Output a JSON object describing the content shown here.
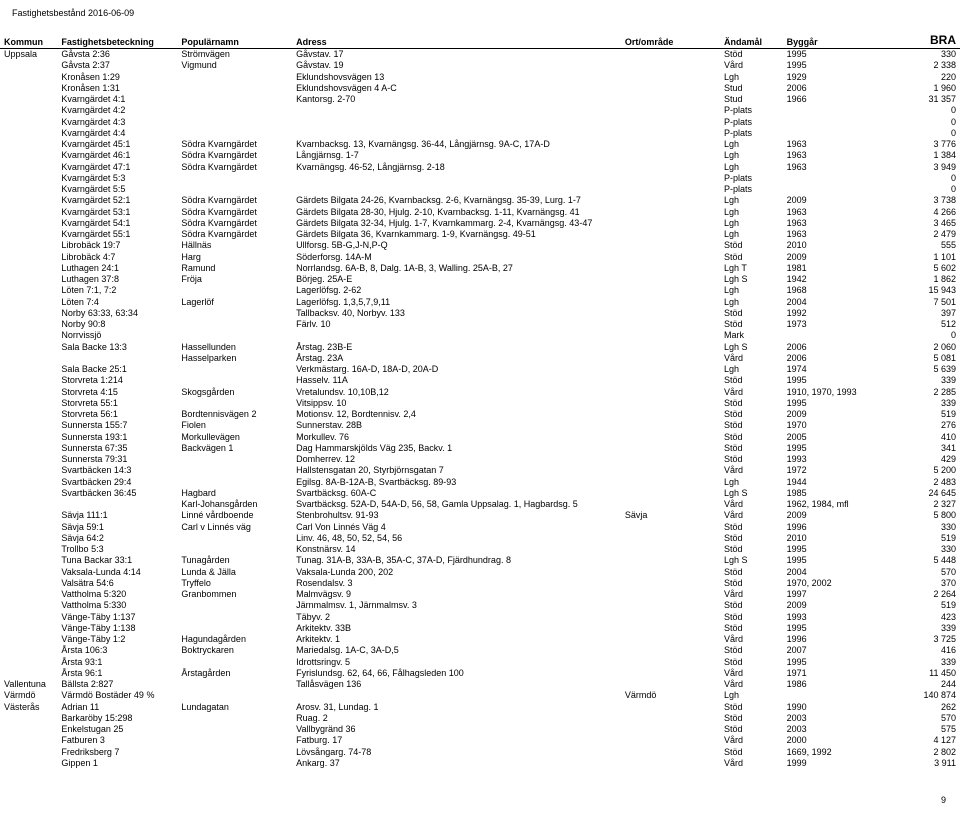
{
  "report_date": "Fastighetsbestånd 2016-06-09",
  "page_number": "9",
  "columns": {
    "kommun": "Kommun",
    "fast": "Fastighetsbeteckning",
    "pop": "Populärnamn",
    "adr": "Adress",
    "ort": "Ort/område",
    "and": "Ändamål",
    "bygg": "Byggår",
    "bra": "BRA"
  },
  "rows": [
    {
      "kommun": "Uppsala",
      "fast": "Gåvsta 2:36",
      "pop": "Strömvägen",
      "adr": "Gåvstav. 17",
      "ort": "",
      "and": "Stöd",
      "bygg": "1995",
      "bra": "330"
    },
    {
      "kommun": "",
      "fast": "Gåvsta 2:37",
      "pop": "Vigmund",
      "adr": "Gåvstav. 19",
      "ort": "",
      "and": "Vård",
      "bygg": "1995",
      "bra": "2 338"
    },
    {
      "kommun": "",
      "fast": "Kronåsen 1:29",
      "pop": "",
      "adr": "Eklundshovsvägen 13",
      "ort": "",
      "and": "Lgh",
      "bygg": "1929",
      "bra": "220"
    },
    {
      "kommun": "",
      "fast": "Kronåsen 1:31",
      "pop": "",
      "adr": "Eklundshovsvägen 4 A-C",
      "ort": "",
      "and": "Stud",
      "bygg": "2006",
      "bra": "1 960"
    },
    {
      "kommun": "",
      "fast": "Kvarngärdet 4:1",
      "pop": "",
      "adr": "Kantorsg. 2-70",
      "ort": "",
      "and": "Stud",
      "bygg": "1966",
      "bra": "31 357"
    },
    {
      "kommun": "",
      "fast": "Kvarngärdet 4:2",
      "pop": "",
      "adr": "",
      "ort": "",
      "and": "P-plats",
      "bygg": "",
      "bra": "0"
    },
    {
      "kommun": "",
      "fast": "Kvarngärdet 4:3",
      "pop": "",
      "adr": "",
      "ort": "",
      "and": "P-plats",
      "bygg": "",
      "bra": "0"
    },
    {
      "kommun": "",
      "fast": "Kvarngärdet 4:4",
      "pop": "",
      "adr": "",
      "ort": "",
      "and": "P-plats",
      "bygg": "",
      "bra": "0"
    },
    {
      "kommun": "",
      "fast": "Kvarngärdet 45:1",
      "pop": "Södra Kvarngärdet",
      "adr": "Kvarnbacksg. 13, Kvarnängsg. 36-44, Långjärnsg. 9A-C, 17A-D",
      "ort": "",
      "and": "Lgh",
      "bygg": "1963",
      "bra": "3 776"
    },
    {
      "kommun": "",
      "fast": "Kvarngärdet 46:1",
      "pop": "Södra Kvarngärdet",
      "adr": "Långjärnsg. 1-7",
      "ort": "",
      "and": "Lgh",
      "bygg": "1963",
      "bra": "1 384"
    },
    {
      "kommun": "",
      "fast": "Kvarngärdet 47:1",
      "pop": "Södra Kvarngärdet",
      "adr": "Kvarnängsg. 46-52, Långjärnsg. 2-18",
      "ort": "",
      "and": "Lgh",
      "bygg": "1963",
      "bra": "3 949"
    },
    {
      "kommun": "",
      "fast": "Kvarngärdet 5:3",
      "pop": "",
      "adr": "",
      "ort": "",
      "and": "P-plats",
      "bygg": "",
      "bra": "0"
    },
    {
      "kommun": "",
      "fast": "Kvarngärdet 5:5",
      "pop": "",
      "adr": "",
      "ort": "",
      "and": "P-plats",
      "bygg": "",
      "bra": "0"
    },
    {
      "kommun": "",
      "fast": "Kvarngärdet 52:1",
      "pop": "Södra Kvarngärdet",
      "adr": "Gärdets Bilgata 24-26, Kvarnbacksg. 2-6, Kvarnängsg. 35-39, Lurg. 1-7",
      "ort": "",
      "and": "Lgh",
      "bygg": "2009",
      "bra": "3 738"
    },
    {
      "kommun": "",
      "fast": "Kvarngärdet 53:1",
      "pop": "Södra Kvarngärdet",
      "adr": "Gärdets Bilgata 28-30, Hjulg. 2-10, Kvarnbacksg. 1-11, Kvarnängsg. 41",
      "ort": "",
      "and": "Lgh",
      "bygg": "1963",
      "bra": "4 266"
    },
    {
      "kommun": "",
      "fast": "Kvarngärdet 54:1",
      "pop": "Södra Kvarngärdet",
      "adr": "Gärdets Bilgata 32-34, Hjulg. 1-7, Kvarnkammarg. 2-4, Kvarnängsg. 43-47",
      "ort": "",
      "and": "Lgh",
      "bygg": "1963",
      "bra": "3 465"
    },
    {
      "kommun": "",
      "fast": "Kvarngärdet 55:1",
      "pop": "Södra Kvarngärdet",
      "adr": "Gärdets Bilgata 36, Kvarnkammarg. 1-9, Kvarnängsg. 49-51",
      "ort": "",
      "and": "Lgh",
      "bygg": "1963",
      "bra": "2 479"
    },
    {
      "kommun": "",
      "fast": "Librobäck 19:7",
      "pop": "Hällnäs",
      "adr": "Ullforsg. 5B-G,J-N,P-Q",
      "ort": "",
      "and": "Stöd",
      "bygg": "2010",
      "bra": "555"
    },
    {
      "kommun": "",
      "fast": "Librobäck 4:7",
      "pop": "Harg",
      "adr": "Söderforsg. 14A-M",
      "ort": "",
      "and": "Stöd",
      "bygg": "2009",
      "bra": "1 101"
    },
    {
      "kommun": "",
      "fast": "Luthagen 24:1",
      "pop": "Ramund",
      "adr": "Norrlandsg. 6A-B, 8, Dalg. 1A-B, 3, Walling. 25A-B, 27",
      "ort": "",
      "and": "Lgh T",
      "bygg": "1981",
      "bra": "5 602"
    },
    {
      "kommun": "",
      "fast": "Luthagen 37:8",
      "pop": "Fröja",
      "adr": "Börjeg. 25A-E",
      "ort": "",
      "and": "Lgh S",
      "bygg": "1942",
      "bra": "1 862"
    },
    {
      "kommun": "",
      "fast": "Löten 7:1, 7:2",
      "pop": "",
      "adr": "Lagerlöfsg. 2-62",
      "ort": "",
      "and": "Lgh",
      "bygg": "1968",
      "bra": "15 943"
    },
    {
      "kommun": "",
      "fast": "Löten 7:4",
      "pop": "Lagerlöf",
      "adr": "Lagerlöfsg. 1,3,5,7,9,11",
      "ort": "",
      "and": "Lgh",
      "bygg": "2004",
      "bra": "7 501"
    },
    {
      "kommun": "",
      "fast": "Norby 63:33, 63:34",
      "pop": "",
      "adr": "Tallbacksv. 40, Norbyv. 133",
      "ort": "",
      "and": "Stöd",
      "bygg": "1992",
      "bra": "397"
    },
    {
      "kommun": "",
      "fast": "Norby 90:8",
      "pop": "",
      "adr": "Färlv. 10",
      "ort": "",
      "and": "Stöd",
      "bygg": "1973",
      "bra": "512"
    },
    {
      "kommun": "",
      "fast": "Norrvissjö",
      "pop": "",
      "adr": "",
      "ort": "",
      "and": "Mark",
      "bygg": "",
      "bra": "0"
    },
    {
      "kommun": "",
      "fast": "Sala Backe 13:3",
      "pop": "Hassellunden",
      "adr": "Årstag. 23B-E",
      "ort": "",
      "and": "Lgh S",
      "bygg": "2006",
      "bra": "2 060"
    },
    {
      "kommun": "",
      "fast": "",
      "pop": "Hasselparken",
      "adr": "Årstag. 23A",
      "ort": "",
      "and": "Vård",
      "bygg": "2006",
      "bra": "5 081"
    },
    {
      "kommun": "",
      "fast": "Sala Backe 25:1",
      "pop": "",
      "adr": "Verkmästarg. 16A-D, 18A-D, 20A-D",
      "ort": "",
      "and": "Lgh",
      "bygg": "1974",
      "bra": "5 639"
    },
    {
      "kommun": "",
      "fast": "Storvreta 1:214",
      "pop": "",
      "adr": "Hasselv. 11A",
      "ort": "",
      "and": "Stöd",
      "bygg": "1995",
      "bra": "339"
    },
    {
      "kommun": "",
      "fast": "Storvreta 4:15",
      "pop": "Skogsgården",
      "adr": "Vretalundsv. 10,10B,12",
      "ort": "",
      "and": "Vård",
      "bygg": "1910, 1970, 1993",
      "bra": "2 285"
    },
    {
      "kommun": "",
      "fast": "Storvreta 55:1",
      "pop": "",
      "adr": "Vitsippsv. 10",
      "ort": "",
      "and": "Stöd",
      "bygg": "1995",
      "bra": "339"
    },
    {
      "kommun": "",
      "fast": "Storvreta 56:1",
      "pop": "Bordtennisvägen 2",
      "adr": "Motionsv. 12, Bordtennisv. 2,4",
      "ort": "",
      "and": "Stöd",
      "bygg": "2009",
      "bra": "519"
    },
    {
      "kommun": "",
      "fast": "Sunnersta 155:7",
      "pop": "Fiolen",
      "adr": "Sunnerstav. 28B",
      "ort": "",
      "and": "Stöd",
      "bygg": "1970",
      "bra": "276"
    },
    {
      "kommun": "",
      "fast": "Sunnersta 193:1",
      "pop": "Morkullevägen",
      "adr": "Morkullev. 76",
      "ort": "",
      "and": "Stöd",
      "bygg": "2005",
      "bra": "410"
    },
    {
      "kommun": "",
      "fast": "Sunnersta 67:35",
      "pop": "Backvägen 1",
      "adr": "Dag Hammarskjölds Väg 235, Backv. 1",
      "ort": "",
      "and": "Stöd",
      "bygg": "1995",
      "bra": "341"
    },
    {
      "kommun": "",
      "fast": "Sunnersta 79:31",
      "pop": "",
      "adr": "Domherrev. 12",
      "ort": "",
      "and": "Stöd",
      "bygg": "1993",
      "bra": "429"
    },
    {
      "kommun": "",
      "fast": "Svartbäcken 14:3",
      "pop": "",
      "adr": "Hallstensgatan 20, Styrbjörnsgatan 7",
      "ort": "",
      "and": "Vård",
      "bygg": "1972",
      "bra": "5 200"
    },
    {
      "kommun": "",
      "fast": "Svartbäcken 29:4",
      "pop": "",
      "adr": "Egilsg. 8A-B-12A-B, Svartbäcksg. 89-93",
      "ort": "",
      "and": "Lgh",
      "bygg": "1944",
      "bra": "2 483"
    },
    {
      "kommun": "",
      "fast": "Svartbäcken 36:45",
      "pop": "Hagbard",
      "adr": "Svartbäcksg. 60A-C",
      "ort": "",
      "and": "Lgh S",
      "bygg": "1985",
      "bra": "24 645"
    },
    {
      "kommun": "",
      "fast": "",
      "pop": "Karl-Johansgården",
      "adr": "Svartbäcksg. 52A-D, 54A-D, 56, 58, Gamla Uppsalag. 1, Hagbardsg. 5",
      "ort": "",
      "and": "Vård",
      "bygg": "1962, 1984, mfl",
      "bra": "2 327"
    },
    {
      "kommun": "",
      "fast": "Sävja 111:1",
      "pop": "Linné vårdboende",
      "adr": "Stenbrohultsv. 91-93",
      "ort": "Sävja",
      "and": "Vård",
      "bygg": "2009",
      "bra": "5 800"
    },
    {
      "kommun": "",
      "fast": "Sävja 59:1",
      "pop": "Carl v Linnés väg",
      "adr": "Carl Von Linnés Väg 4",
      "ort": "",
      "and": "Stöd",
      "bygg": "1996",
      "bra": "330"
    },
    {
      "kommun": "",
      "fast": "Sävja 64:2",
      "pop": "",
      "adr": "Linv. 46, 48, 50, 52, 54, 56",
      "ort": "",
      "and": "Stöd",
      "bygg": "2010",
      "bra": "519"
    },
    {
      "kommun": "",
      "fast": "Trollbo 5:3",
      "pop": "",
      "adr": "Konstnärsv. 14",
      "ort": "",
      "and": "Stöd",
      "bygg": "1995",
      "bra": "330"
    },
    {
      "kommun": "",
      "fast": "Tuna Backar 33:1",
      "pop": "Tunagården",
      "adr": "Tunag. 31A-B, 33A-B, 35A-C, 37A-D, Fjärdhundrag. 8",
      "ort": "",
      "and": "Lgh S",
      "bygg": "1995",
      "bra": "5 448"
    },
    {
      "kommun": "",
      "fast": "Vaksala-Lunda 4:14",
      "pop": "Lunda & Jälla",
      "adr": "Vaksala-Lunda 200, 202",
      "ort": "",
      "and": "Stöd",
      "bygg": "2004",
      "bra": "570"
    },
    {
      "kommun": "",
      "fast": "Valsätra 54:6",
      "pop": "Tryffelo",
      "adr": "Rosendalsv. 3",
      "ort": "",
      "and": "Stöd",
      "bygg": "1970, 2002",
      "bra": "370"
    },
    {
      "kommun": "",
      "fast": "Vattholma 5:320",
      "pop": "Granbommen",
      "adr": "Malmvägsv. 9",
      "ort": "",
      "and": "Vård",
      "bygg": "1997",
      "bra": "2 264"
    },
    {
      "kommun": "",
      "fast": "Vattholma 5:330",
      "pop": "",
      "adr": "Järnmalmsv. 1, Järnmalmsv. 3",
      "ort": "",
      "and": "Stöd",
      "bygg": "2009",
      "bra": "519"
    },
    {
      "kommun": "",
      "fast": "Vänge-Täby 1:137",
      "pop": "",
      "adr": "Täbyv. 2",
      "ort": "",
      "and": "Stöd",
      "bygg": "1993",
      "bra": "423"
    },
    {
      "kommun": "",
      "fast": "Vänge-Täby 1:138",
      "pop": "",
      "adr": "Arkitektv. 33B",
      "ort": "",
      "and": "Stöd",
      "bygg": "1995",
      "bra": "339"
    },
    {
      "kommun": "",
      "fast": "Vänge-Täby 1:2",
      "pop": "Hagundagården",
      "adr": "Arkitektv. 1",
      "ort": "",
      "and": "Vård",
      "bygg": "1996",
      "bra": "3 725"
    },
    {
      "kommun": "",
      "fast": "Årsta 106:3",
      "pop": "Boktryckaren",
      "adr": "Mariedalsg. 1A-C, 3A-D,5",
      "ort": "",
      "and": "Stöd",
      "bygg": "2007",
      "bra": "416"
    },
    {
      "kommun": "",
      "fast": "Årsta 93:1",
      "pop": "",
      "adr": "Idrottsringv. 5",
      "ort": "",
      "and": "Stöd",
      "bygg": "1995",
      "bra": "339"
    },
    {
      "kommun": "",
      "fast": "Årsta 96:1",
      "pop": "Årstagården",
      "adr": "Fyrislundsg. 62, 64, 66, Fålhagsleden 100",
      "ort": "",
      "and": "Vård",
      "bygg": "1971",
      "bra": "11 450"
    },
    {
      "kommun": "Vallentuna",
      "fast": "Bällsta 2:827",
      "pop": "",
      "adr": "Tallåsvägen 136",
      "ort": "",
      "and": "Vård",
      "bygg": "1986",
      "bra": "244"
    },
    {
      "kommun": "Värmdö",
      "fast": "Värmdö Bostäder 49 %",
      "pop": "",
      "adr": "",
      "ort": "Värmdö",
      "and": "Lgh",
      "bygg": "",
      "bra": "140 874"
    },
    {
      "kommun": "Västerås",
      "fast": "Adrian 11",
      "pop": "Lundagatan",
      "adr": "Arosv. 31, Lundag. 1",
      "ort": "",
      "and": "Stöd",
      "bygg": "1990",
      "bra": "262"
    },
    {
      "kommun": "",
      "fast": "Barkaröby 15:298",
      "pop": "",
      "adr": "Ruag. 2",
      "ort": "",
      "and": "Stöd",
      "bygg": "2003",
      "bra": "570"
    },
    {
      "kommun": "",
      "fast": "Enkelstugan 25",
      "pop": "",
      "adr": "Vallbygränd 36",
      "ort": "",
      "and": "Stöd",
      "bygg": "2003",
      "bra": "575"
    },
    {
      "kommun": "",
      "fast": "Fatburen 3",
      "pop": "",
      "adr": "Fatburg. 17",
      "ort": "",
      "and": "Vård",
      "bygg": "2000",
      "bra": "4 127"
    },
    {
      "kommun": "",
      "fast": "Fredriksberg 7",
      "pop": "",
      "adr": "Lövsångarg. 74-78",
      "ort": "",
      "and": "Stöd",
      "bygg": "1669, 1992",
      "bra": "2 802"
    },
    {
      "kommun": "",
      "fast": "Gippen 1",
      "pop": "",
      "adr": "Ankarg. 37",
      "ort": "",
      "and": "Vård",
      "bygg": "1999",
      "bra": "3 911"
    }
  ]
}
